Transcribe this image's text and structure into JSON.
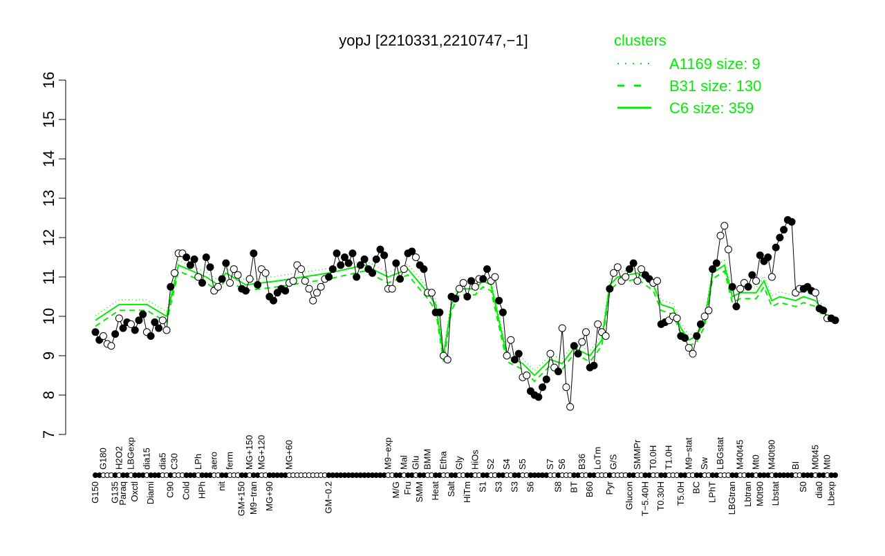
{
  "chart_data": {
    "type": "line",
    "title": "yopJ [2210331,2210747,−1]",
    "xlabel": "",
    "ylabel": "",
    "ylim": [
      7,
      16
    ],
    "yticks": [
      "7",
      "8",
      "9",
      "10",
      "11",
      "12",
      "13",
      "14",
      "15",
      "16"
    ],
    "grid": false,
    "legend": {
      "title": "clusters",
      "placement": "top-right",
      "color": "#00ee00",
      "entries": [
        {
          "label": "A1169 size: 9",
          "style": "dotted"
        },
        {
          "label": "B31 size: 130",
          "style": "dashed"
        },
        {
          "label": "C6 size: 359",
          "style": "solid"
        }
      ]
    },
    "series_color": "#000000",
    "cluster_color": "#00ee00",
    "points": [
      [
        "G150",
        9.6
      ],
      [
        "",
        9.4
      ],
      [
        "G180",
        9.5
      ],
      [
        "",
        9.3
      ],
      [
        "",
        9.25
      ],
      [
        "G135",
        9.55
      ],
      [
        "H2O2",
        9.95
      ],
      [
        "Paraq",
        9.7
      ],
      [
        "",
        9.85
      ],
      [
        "LBGexp",
        9.8
      ],
      [
        "Oxctl",
        9.65
      ],
      [
        "",
        9.9
      ],
      [
        "",
        10.05
      ],
      [
        "dia15",
        9.6
      ],
      [
        "Diami",
        9.5
      ],
      [
        "",
        9.85
      ],
      [
        "",
        9.7
      ],
      [
        "dia5",
        9.9
      ],
      [
        "",
        9.65
      ],
      [
        "C90",
        10.75
      ],
      [
        "C30",
        11.1
      ],
      [
        "",
        11.6
      ],
      [
        "",
        11.6
      ],
      [
        "Cold",
        11.5
      ],
      [
        "",
        11.3
      ],
      [
        "",
        11.45
      ],
      [
        "LPh",
        11.0
      ],
      [
        "HPh",
        10.85
      ],
      [
        "",
        11.5
      ],
      [
        "",
        11.25
      ],
      [
        "aero",
        10.65
      ],
      [
        "",
        10.75
      ],
      [
        "nit",
        10.95
      ],
      [
        "",
        11.35
      ],
      [
        "ferm",
        10.85
      ],
      [
        "",
        11.2
      ],
      [
        "",
        11.05
      ],
      [
        "GM+150",
        10.7
      ],
      [
        "",
        10.65
      ],
      [
        "MG+150",
        10.95
      ],
      [
        "M9−tran",
        11.6
      ],
      [
        "",
        10.8
      ],
      [
        "MG+120",
        11.2
      ],
      [
        "",
        11.1
      ],
      [
        "MG+90",
        10.5
      ],
      [
        "",
        10.4
      ],
      [
        "",
        10.6
      ],
      [
        "",
        10.7
      ],
      [
        "",
        10.65
      ],
      [
        "MG+60",
        10.85
      ],
      [
        "",
        10.9
      ],
      [
        "",
        11.3
      ],
      [
        "",
        11.2
      ],
      [
        "",
        10.9
      ],
      [
        "",
        10.7
      ],
      [
        "",
        10.4
      ],
      [
        "",
        10.6
      ],
      [
        "",
        10.75
      ],
      [
        "",
        10.95
      ],
      [
        "GM−0.2",
        11.0
      ],
      [
        "",
        11.2
      ],
      [
        "",
        11.6
      ],
      [
        "",
        11.3
      ],
      [
        "",
        11.5
      ],
      [
        "",
        11.35
      ],
      [
        "",
        11.6
      ],
      [
        "",
        11.0
      ],
      [
        "",
        11.3
      ],
      [
        "",
        11.45
      ],
      [
        "",
        11.2
      ],
      [
        "",
        11.1
      ],
      [
        "",
        11.45
      ],
      [
        "",
        11.7
      ],
      [
        "",
        11.55
      ],
      [
        "M9−exp",
        10.7
      ],
      [
        "",
        10.7
      ],
      [
        "M/G",
        11.35
      ],
      [
        "",
        10.95
      ],
      [
        "Mal",
        11.2
      ],
      [
        "Fru",
        11.6
      ],
      [
        "",
        11.65
      ],
      [
        "Glu",
        11.5
      ],
      [
        "SMM",
        11.3
      ],
      [
        "",
        11.2
      ],
      [
        "BMM",
        10.6
      ],
      [
        "",
        10.6
      ],
      [
        "Heat",
        10.1
      ],
      [
        "",
        10.1
      ],
      [
        "Etha",
        9.0
      ],
      [
        "",
        8.9
      ],
      [
        "Salt",
        10.5
      ],
      [
        "",
        10.45
      ],
      [
        "Gly",
        10.7
      ],
      [
        "",
        10.85
      ],
      [
        "HiTm",
        10.5
      ],
      [
        "",
        10.9
      ],
      [
        "HiOs",
        10.75
      ],
      [
        "",
        10.95
      ],
      [
        "S1",
        10.95
      ],
      [
        "",
        11.2
      ],
      [
        "S2",
        10.9
      ],
      [
        "",
        11.0
      ],
      [
        "S3",
        10.4
      ],
      [
        "",
        10.1
      ],
      [
        "S4",
        9.0
      ],
      [
        "",
        9.4
      ],
      [
        "S3",
        8.9
      ],
      [
        "",
        9.05
      ],
      [
        "S5",
        8.45
      ],
      [
        "",
        8.5
      ],
      [
        "S6",
        8.1
      ],
      [
        "",
        8.0
      ],
      [
        "",
        7.95
      ],
      [
        "",
        8.2
      ],
      [
        "",
        8.4
      ],
      [
        "S7",
        9.05
      ],
      [
        "",
        8.7
      ],
      [
        "S8",
        8.6
      ],
      [
        "S6",
        9.7
      ],
      [
        "",
        8.2
      ],
      [
        "",
        7.7
      ],
      [
        "BT",
        9.25
      ],
      [
        "",
        9.05
      ],
      [
        "B36",
        9.35
      ],
      [
        "",
        9.6
      ],
      [
        "B60",
        8.7
      ],
      [
        "",
        8.75
      ],
      [
        "LoTm",
        9.8
      ],
      [
        "",
        9.6
      ],
      [
        "",
        9.5
      ],
      [
        "Pyr",
        10.7
      ],
      [
        "G/S",
        11.1
      ],
      [
        "",
        11.25
      ],
      [
        "",
        10.9
      ],
      [
        "",
        11.0
      ],
      [
        "Glucon",
        11.2
      ],
      [
        "",
        11.35
      ],
      [
        "SMMPr",
        10.9
      ],
      [
        "",
        11.2
      ],
      [
        "T−5.40H",
        11.05
      ],
      [
        "",
        10.95
      ],
      [
        "T0.0H",
        10.85
      ],
      [
        "",
        10.9
      ],
      [
        "T0.30H",
        9.8
      ],
      [
        "",
        9.85
      ],
      [
        "T1.0H",
        9.9
      ],
      [
        "",
        10.0
      ],
      [
        "",
        9.95
      ],
      [
        "T5.0H",
        9.5
      ],
      [
        "",
        9.45
      ],
      [
        "M9−stat",
        9.2
      ],
      [
        "",
        9.05
      ],
      [
        "BC",
        9.5
      ],
      [
        "",
        9.8
      ],
      [
        "Sw",
        10.0
      ],
      [
        "",
        10.15
      ],
      [
        "LPhT",
        11.2
      ],
      [
        "",
        11.35
      ],
      [
        "LBGstat",
        12.05
      ],
      [
        "",
        12.3
      ],
      [
        "",
        11.7
      ],
      [
        "LBGtran",
        10.75
      ],
      [
        "",
        10.25
      ],
      [
        "M40t45",
        10.7
      ],
      [
        "",
        10.85
      ],
      [
        "Lbtran",
        10.75
      ],
      [
        "",
        11.05
      ],
      [
        "Mt0",
        10.9
      ],
      [
        "M0t90",
        11.55
      ],
      [
        "",
        11.4
      ],
      [
        "",
        11.5
      ],
      [
        "M40t90",
        11.0
      ],
      [
        "Lbstat",
        11.75
      ],
      [
        "",
        12.0
      ],
      [
        "",
        12.2
      ],
      [
        "",
        12.45
      ],
      [
        "",
        12.4
      ],
      [
        "BI",
        10.6
      ],
      [
        "",
        10.7
      ],
      [
        "S0",
        10.7
      ],
      [
        "",
        10.75
      ],
      [
        "",
        10.65
      ],
      [
        "M0t45",
        10.6
      ],
      [
        "dia0",
        10.2
      ],
      [
        "",
        10.15
      ],
      [
        "Mt0",
        9.95
      ],
      [
        "Lbexp",
        9.95
      ],
      [
        "",
        9.9
      ]
    ],
    "c6_line": [
      [
        0,
        9.9
      ],
      [
        6,
        10.3
      ],
      [
        13,
        10.3
      ],
      [
        18,
        10.0
      ],
      [
        21,
        11.3
      ],
      [
        28,
        11.0
      ],
      [
        31,
        10.8
      ],
      [
        33,
        11.1
      ],
      [
        38,
        10.8
      ],
      [
        46,
        10.9
      ],
      [
        59,
        11.1
      ],
      [
        68,
        11.3
      ],
      [
        74,
        11.0
      ],
      [
        79,
        11.2
      ],
      [
        84,
        10.6
      ],
      [
        86,
        10.3
      ],
      [
        88,
        9.0
      ],
      [
        90,
        10.3
      ],
      [
        92,
        10.7
      ],
      [
        96,
        10.7
      ],
      [
        98,
        10.9
      ],
      [
        100,
        10.8
      ],
      [
        102,
        9.9
      ],
      [
        104,
        9.0
      ],
      [
        108,
        8.8
      ],
      [
        111,
        8.5
      ],
      [
        115,
        8.9
      ],
      [
        118,
        8.8
      ],
      [
        121,
        9.2
      ],
      [
        125,
        9.0
      ],
      [
        128,
        9.4
      ],
      [
        130,
        10.8
      ],
      [
        132,
        11.0
      ],
      [
        137,
        11.1
      ],
      [
        141,
        10.8
      ],
      [
        143,
        10.3
      ],
      [
        146,
        10.2
      ],
      [
        148,
        9.7
      ],
      [
        150,
        9.4
      ],
      [
        152,
        9.5
      ],
      [
        154,
        9.9
      ],
      [
        156,
        11.1
      ],
      [
        159,
        11.3
      ],
      [
        161,
        10.5
      ],
      [
        163,
        10.6
      ],
      [
        167,
        10.6
      ],
      [
        169,
        10.9
      ],
      [
        171,
        10.4
      ],
      [
        173,
        10.5
      ],
      [
        177,
        10.4
      ],
      [
        179,
        10.5
      ],
      [
        182,
        10.4
      ],
      [
        185,
        10.0
      ]
    ]
  }
}
